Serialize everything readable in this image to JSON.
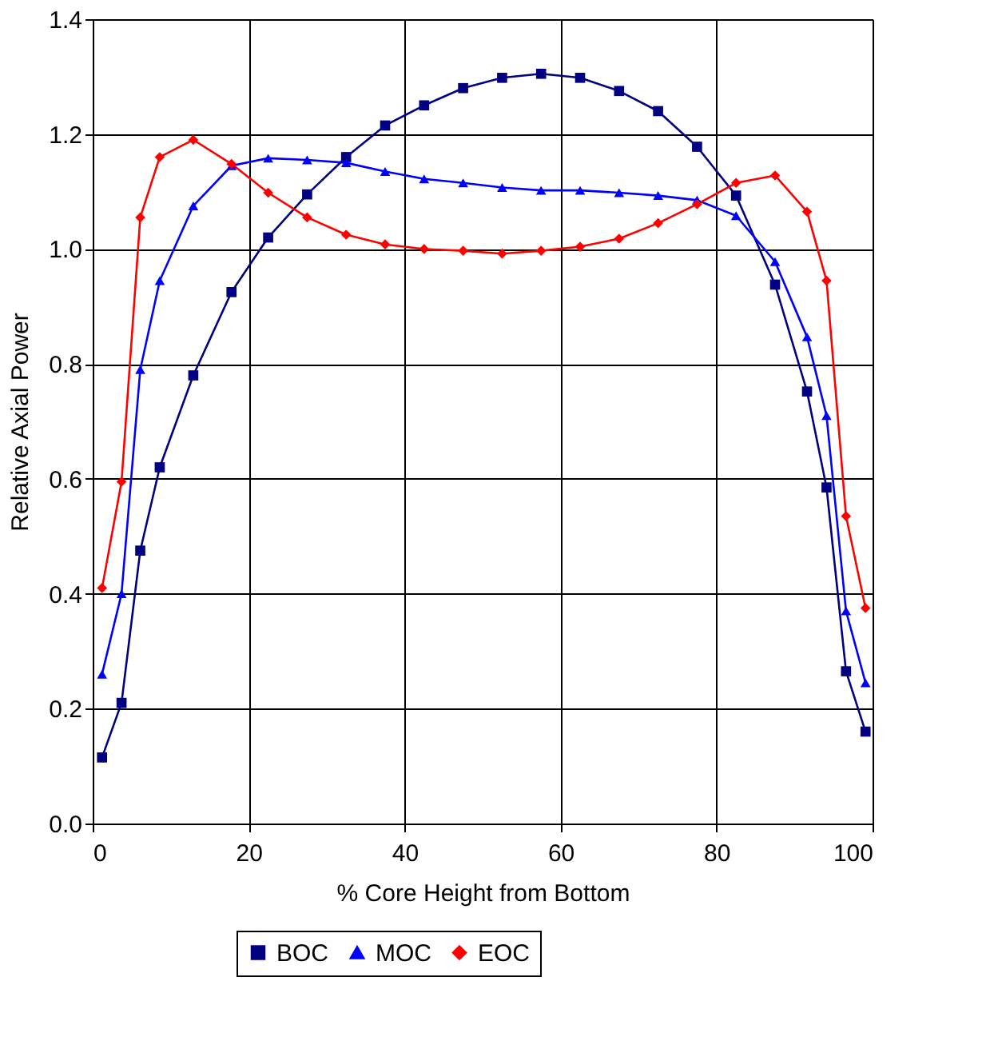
{
  "chart_data": {
    "type": "line",
    "xlabel": "% Core Height from Bottom",
    "ylabel": "Relative Axial Power",
    "x": [
      1.2,
      3.7,
      6.1,
      8.6,
      12.9,
      17.8,
      22.5,
      27.5,
      32.5,
      37.5,
      42.5,
      47.5,
      52.5,
      57.5,
      62.5,
      67.5,
      72.5,
      77.5,
      82.5,
      87.5,
      91.6,
      94.1,
      96.6,
      99.1
    ],
    "series": [
      {
        "name": "BOC",
        "color": "#000080",
        "marker": "square",
        "values": [
          0.115,
          0.21,
          0.475,
          0.62,
          0.78,
          0.925,
          1.02,
          1.095,
          1.16,
          1.215,
          1.25,
          1.28,
          1.298,
          1.305,
          1.298,
          1.275,
          1.24,
          1.178,
          1.093,
          0.938,
          0.752,
          0.585,
          0.265,
          0.16
        ]
      },
      {
        "name": "MOC",
        "color": "#0000ff",
        "marker": "triangle",
        "values": [
          0.26,
          0.4,
          0.79,
          0.945,
          1.075,
          1.145,
          1.158,
          1.155,
          1.15,
          1.135,
          1.122,
          1.115,
          1.107,
          1.102,
          1.102,
          1.098,
          1.093,
          1.085,
          1.058,
          0.978,
          0.847,
          0.71,
          0.37,
          0.245
        ]
      },
      {
        "name": "EOC",
        "color": "#ff0000",
        "marker": "diamond",
        "values": [
          0.41,
          0.595,
          1.055,
          1.16,
          1.19,
          1.148,
          1.098,
          1.055,
          1.025,
          1.008,
          1.0,
          0.997,
          0.992,
          0.997,
          1.004,
          1.018,
          1.045,
          1.078,
          1.115,
          1.128,
          1.065,
          0.945,
          0.535,
          0.375
        ]
      }
    ],
    "xlim": [
      0,
      100
    ],
    "xticks": [
      0,
      20,
      40,
      60,
      80,
      100
    ],
    "ylim": [
      0,
      1.4
    ],
    "yticks": [
      {
        "value": 0,
        "label": "0.0"
      },
      0.2,
      0.4,
      0.6,
      0.8,
      {
        "value": 1,
        "label": "1.0"
      },
      1.2,
      1.4
    ],
    "grid": true,
    "legend": "bottom",
    "line_style": "solid"
  }
}
